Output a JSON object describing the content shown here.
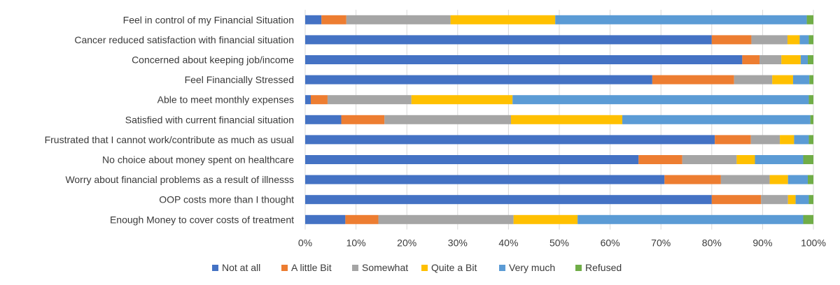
{
  "chart_data": {
    "type": "bar",
    "orientation": "horizontal",
    "stacked": "percent",
    "categories": [
      "Feel in control of my Financial Situation",
      "Cancer reduced satisfaction with financial situation",
      "Concerned about keeping job/income",
      "Feel Financially Stressed",
      "Able to meet monthly expenses",
      "Satisfied with current financial situation",
      "Frustrated that I cannot work/contribute as much as usual",
      "No choice about money spent on healthcare",
      "Worry about financial problems as a result of illnesss",
      "OOP costs more than I thought",
      "Enough Money to cover costs of treatment"
    ],
    "series": [
      {
        "name": "Not at all",
        "color": "#4472C4",
        "values": [
          3.2,
          80.0,
          86.0,
          68.3,
          1.1,
          7.1,
          80.6,
          65.6,
          70.7,
          80.0,
          7.9
        ]
      },
      {
        "name": "A little Bit",
        "color": "#ED7D31",
        "values": [
          4.9,
          7.8,
          3.4,
          16.1,
          3.3,
          8.5,
          7.1,
          8.6,
          11.1,
          9.7,
          6.5
        ]
      },
      {
        "name": "Somewhat",
        "color": "#A5A5A5",
        "values": [
          20.5,
          7.1,
          4.3,
          7.5,
          16.5,
          24.9,
          5.7,
          10.7,
          9.6,
          5.3,
          26.6
        ]
      },
      {
        "name": "Quite a Bit",
        "color": "#FFC000",
        "values": [
          20.6,
          2.4,
          3.8,
          4.1,
          19.9,
          21.9,
          2.8,
          3.6,
          3.6,
          1.5,
          12.6
        ]
      },
      {
        "name": "Very much",
        "color": "#5B9BD5",
        "values": [
          49.5,
          1.8,
          1.4,
          3.2,
          58.3,
          37.0,
          2.9,
          9.5,
          3.9,
          2.6,
          44.4
        ]
      },
      {
        "name": "Refused",
        "color": "#70AD47",
        "values": [
          1.3,
          0.9,
          1.1,
          0.8,
          0.9,
          0.6,
          0.9,
          2.0,
          1.1,
          0.9,
          2.0
        ]
      }
    ],
    "xlim": [
      0,
      100
    ],
    "x_ticks": [
      "0%",
      "10%",
      "20%",
      "30%",
      "40%",
      "50%",
      "60%",
      "70%",
      "80%",
      "90%",
      "100%"
    ],
    "grid": true,
    "legend_position": "bottom"
  }
}
